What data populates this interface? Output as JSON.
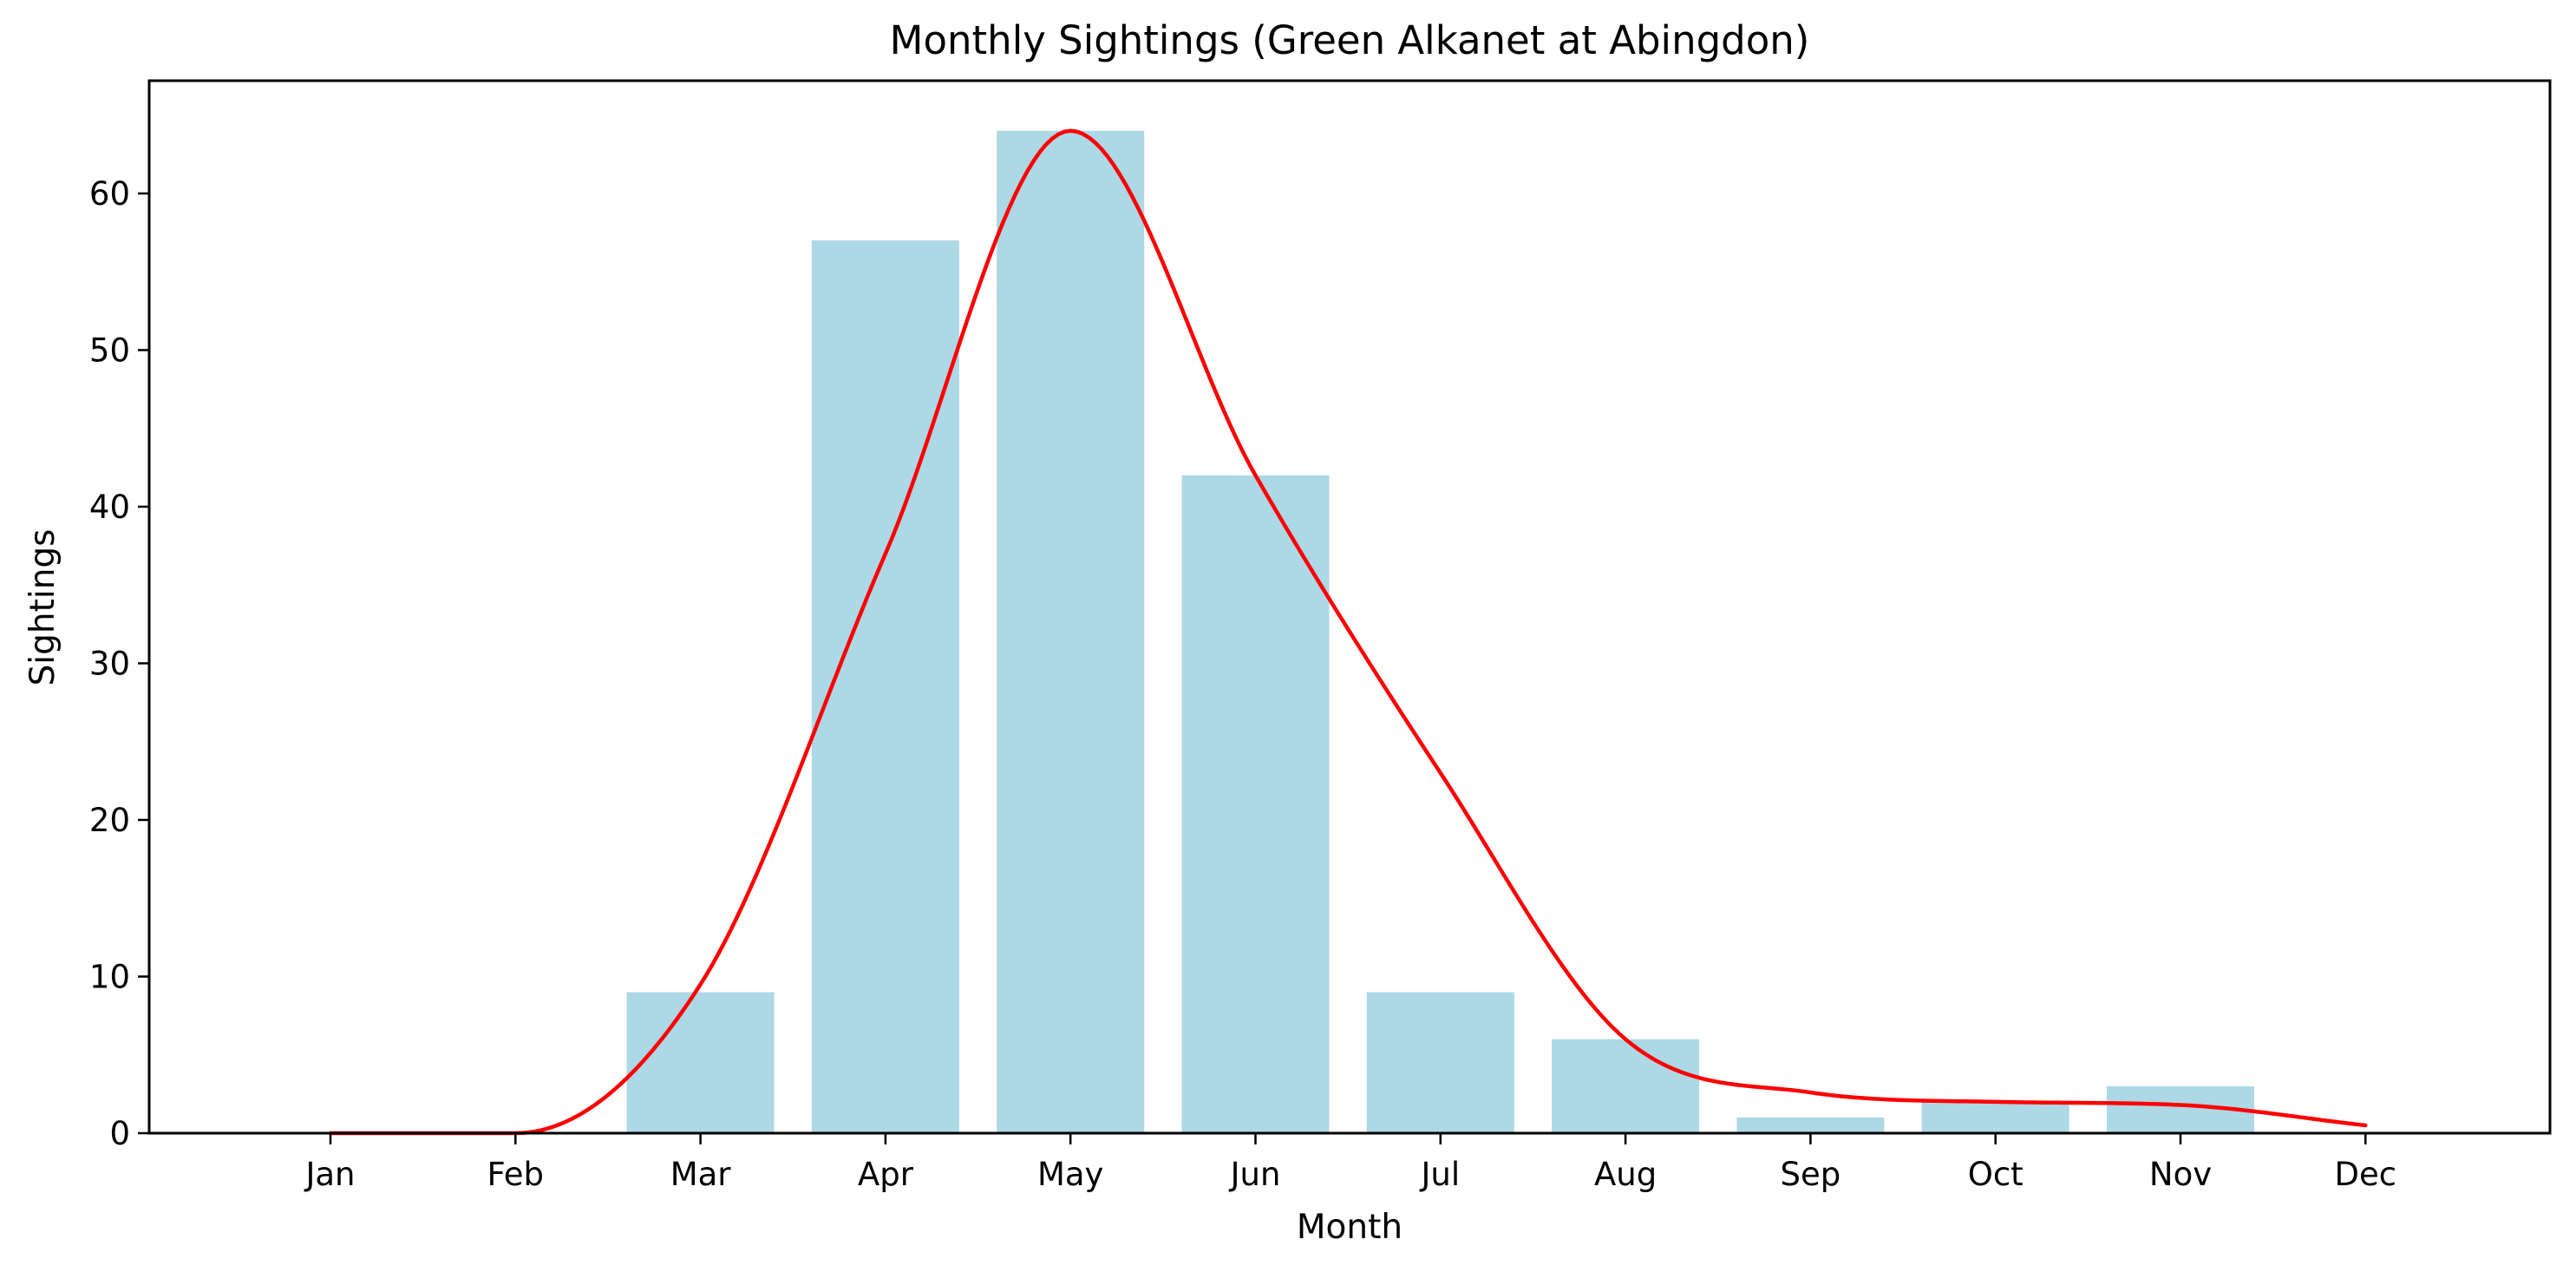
{
  "chart_data": {
    "type": "bar",
    "title": "Monthly Sightings (Green Alkanet at Abingdon)",
    "xlabel": "Month",
    "ylabel": "Sightings",
    "categories": [
      "Jan",
      "Feb",
      "Mar",
      "Apr",
      "May",
      "Jun",
      "Jul",
      "Aug",
      "Sep",
      "Oct",
      "Nov",
      "Dec"
    ],
    "values": [
      0,
      0,
      9,
      57,
      64,
      42,
      9,
      6,
      1,
      2,
      3,
      0
    ],
    "ylim": [
      0,
      67.2
    ],
    "yticks": [
      0,
      10,
      20,
      30,
      40,
      50,
      60
    ],
    "grid": false,
    "bar_color": "#add8e6",
    "overlay": {
      "type": "line",
      "smooth": true,
      "color": "#ff0000",
      "values": [
        0,
        0,
        9.5,
        37,
        64,
        42,
        23,
        6,
        2.6,
        2,
        1.8,
        0.5
      ]
    }
  }
}
